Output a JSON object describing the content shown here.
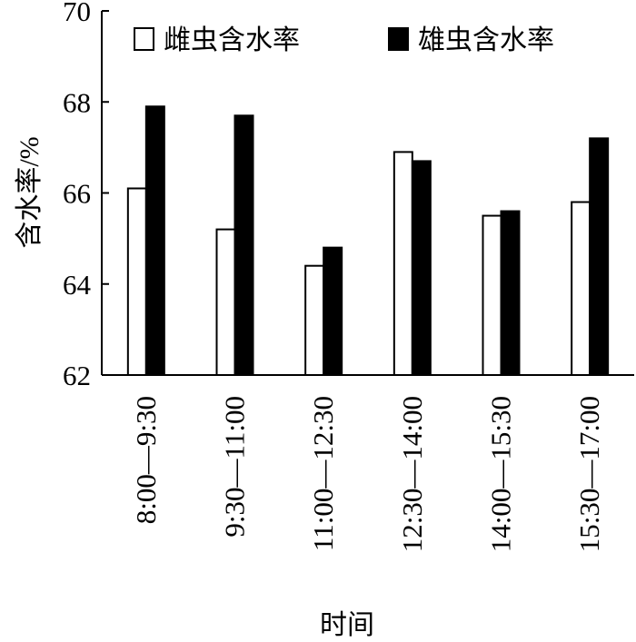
{
  "chart_data": {
    "type": "bar",
    "title": "",
    "xlabel": "时间",
    "ylabel": "含水率/%",
    "categories": [
      "8:00—9:30",
      "9:30—11:00",
      "11:00—12:30",
      "12:30—14:00",
      "14:00—15:30",
      "15:30—17:00"
    ],
    "series": [
      {
        "name": "雌虫含水率",
        "color": "#ffffff",
        "values": [
          66.1,
          65.2,
          64.4,
          66.9,
          65.5,
          65.8
        ]
      },
      {
        "name": "雄虫含水率",
        "color": "#000000",
        "values": [
          67.9,
          67.7,
          64.8,
          66.7,
          65.6,
          67.2
        ]
      }
    ],
    "ylim": [
      62,
      70
    ],
    "yticks": [
      62,
      64,
      66,
      68,
      70
    ],
    "legend_position": "top",
    "grid": false
  }
}
